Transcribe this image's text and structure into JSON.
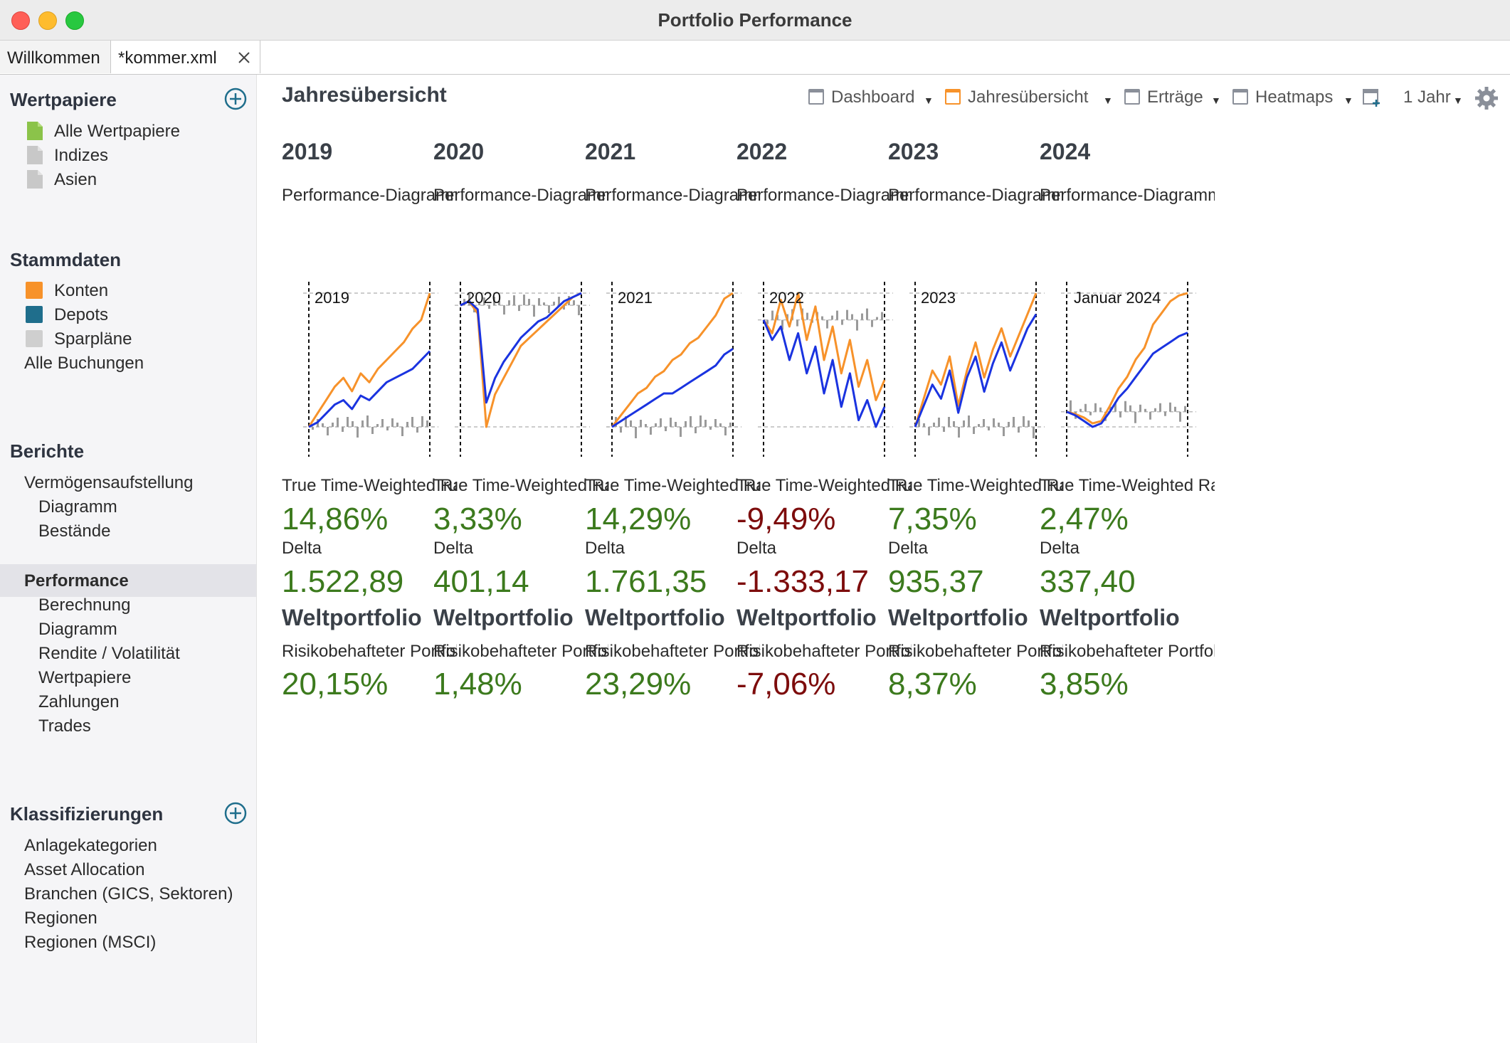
{
  "window": {
    "title": "Portfolio Performance"
  },
  "tabs": [
    {
      "label": "Willkommen"
    },
    {
      "label": "*kommer.xml"
    }
  ],
  "sidebar": {
    "wertpapiere": {
      "title": "Wertpapiere",
      "items": [
        {
          "label": "Alle Wertpapiere",
          "icon": "green-document-icon",
          "color": "#8bc34a"
        },
        {
          "label": "Indizes",
          "icon": "gray-document-icon",
          "color": "#c8c8c8"
        },
        {
          "label": "Asien",
          "icon": "gray-document-icon",
          "color": "#c8c8c8"
        }
      ]
    },
    "stammdaten": {
      "title": "Stammdaten",
      "items": [
        {
          "label": "Konten",
          "icon": "orange-account-icon",
          "color": "#f7922a"
        },
        {
          "label": "Depots",
          "icon": "blue-depot-icon",
          "color": "#1f6e8c"
        },
        {
          "label": "Sparpläne",
          "icon": "gray-savings-plan-icon",
          "color": "#cfcfcf"
        },
        {
          "label": "Alle Buchungen"
        }
      ]
    },
    "berichte": {
      "title": "Berichte",
      "items": [
        {
          "label": "Vermögensaufstellung",
          "level": 1
        },
        {
          "label": "Diagramm",
          "level": 2
        },
        {
          "label": "Bestände",
          "level": 2
        },
        {
          "label": "Performance",
          "level": 1,
          "selected": true
        },
        {
          "label": "Berechnung",
          "level": 2
        },
        {
          "label": "Diagramm",
          "level": 2
        },
        {
          "label": "Rendite / Volatilität",
          "level": 2
        },
        {
          "label": "Wertpapiere",
          "level": 2
        },
        {
          "label": "Zahlungen",
          "level": 2
        },
        {
          "label": "Trades",
          "level": 2
        }
      ]
    },
    "klassifizierungen": {
      "title": "Klassifizierungen",
      "items": [
        {
          "label": "Anlagekategorien"
        },
        {
          "label": "Asset Allocation"
        },
        {
          "label": "Branchen (GICS, Sektoren)"
        },
        {
          "label": "Regionen"
        },
        {
          "label": "Regionen (MSCI)"
        }
      ]
    }
  },
  "main": {
    "title": "Jahresübersicht",
    "toolbar": {
      "dashboard": "Dashboard",
      "jahresuebersicht": "Jahresübersicht",
      "ertraege": "Erträge",
      "heatmaps": "Heatmaps",
      "period": "1 Jahr"
    },
    "columns": [
      {
        "year": "2019",
        "chart_label": "Performance-Diagramm",
        "chart_caption": "2019",
        "ttwror_label": "True Time-Weighted Rate of Return",
        "ttwror": "14,86%",
        "ttwror_negative": false,
        "delta_label": "Delta",
        "delta": "1.522,89",
        "delta_negative": false,
        "portfolio": "Weltportfolio",
        "risk_label": "Risikobehafteter Portfolioteil",
        "risk": "20,15%",
        "risk_negative": false
      },
      {
        "year": "2020",
        "chart_label": "Performance-Diagramm",
        "chart_caption": "2020",
        "ttwror_label": "True Time-Weighted Rate of Return",
        "ttwror": "3,33%",
        "ttwror_negative": false,
        "delta_label": "Delta",
        "delta": "401,14",
        "delta_negative": false,
        "portfolio": "Weltportfolio",
        "risk_label": "Risikobehafteter Portfolioteil",
        "risk": "1,48%",
        "risk_negative": false
      },
      {
        "year": "2021",
        "chart_label": "Performance-Diagramm",
        "chart_caption": "2021",
        "ttwror_label": "True Time-Weighted Rate of Return",
        "ttwror": "14,29%",
        "ttwror_negative": false,
        "delta_label": "Delta",
        "delta": "1.761,35",
        "delta_negative": false,
        "portfolio": "Weltportfolio",
        "risk_label": "Risikobehafteter Portfolioteil",
        "risk": "23,29%",
        "risk_negative": false
      },
      {
        "year": "2022",
        "chart_label": "Performance-Diagramm",
        "chart_caption": "2022",
        "ttwror_label": "True Time-Weighted Rate of Return",
        "ttwror": "-9,49%",
        "ttwror_negative": true,
        "delta_label": "Delta",
        "delta": "-1.333,17",
        "delta_negative": true,
        "portfolio": "Weltportfolio",
        "risk_label": "Risikobehafteter Portfolioteil",
        "risk": "-7,06%",
        "risk_negative": true
      },
      {
        "year": "2023",
        "chart_label": "Performance-Diagramm",
        "chart_caption": "2023",
        "ttwror_label": "True Time-Weighted Rate of Return",
        "ttwror": "7,35%",
        "ttwror_negative": false,
        "delta_label": "Delta",
        "delta": "935,37",
        "delta_negative": false,
        "portfolio": "Weltportfolio",
        "risk_label": "Risikobehafteter Portfolioteil",
        "risk": "8,37%",
        "risk_negative": false
      },
      {
        "year": "2024",
        "chart_label": "Performance-Diagramm",
        "chart_caption": "Januar 2024",
        "ttwror_label": "True Time-Weighted Rate of Return",
        "ttwror": "2,47%",
        "ttwror_negative": false,
        "delta_label": "Delta",
        "delta": "337,40",
        "delta_negative": false,
        "portfolio": "Weltportfolio",
        "risk_label": "Risikobehafteter Portfolioteil",
        "risk": "3,85%",
        "risk_negative": false
      }
    ]
  },
  "colors": {
    "positive": "#3c7a1d",
    "negative": "#7d0c0c",
    "series_orange": "#f7922a",
    "series_blue": "#1a33e0",
    "series_gray": "#9a9a9a",
    "accent_plus": "#1f6e8c"
  },
  "chart_data": [
    {
      "type": "line",
      "chart": "2019",
      "series": [
        {
          "values": [
            0,
            3,
            6,
            9,
            11,
            8,
            12,
            10,
            13,
            15,
            17,
            19,
            22,
            24,
            30
          ]
        },
        {
          "values": [
            0,
            1,
            3,
            5,
            6,
            4,
            7,
            6,
            8,
            10,
            11,
            12,
            13,
            15,
            17
          ]
        }
      ]
    },
    {
      "type": "line",
      "chart": "2020",
      "series": [
        {
          "values": [
            0,
            1,
            -2,
            -30,
            -22,
            -18,
            -14,
            -10,
            -8,
            -6,
            -4,
            -2,
            0,
            2,
            3
          ]
        },
        {
          "values": [
            0,
            1,
            -1,
            -24,
            -18,
            -14,
            -11,
            -8,
            -6,
            -4,
            -3,
            -1,
            1,
            2,
            3
          ]
        }
      ]
    },
    {
      "type": "line",
      "chart": "2021",
      "series": [
        {
          "values": [
            0,
            2,
            4,
            6,
            7,
            9,
            10,
            12,
            13,
            15,
            16,
            18,
            20,
            23,
            24
          ]
        },
        {
          "values": [
            0,
            1,
            2,
            3,
            4,
            5,
            6,
            6,
            7,
            8,
            9,
            10,
            11,
            13,
            14
          ]
        }
      ]
    },
    {
      "type": "line",
      "chart": "2022",
      "series": [
        {
          "values": [
            0,
            -2,
            3,
            -1,
            4,
            -3,
            2,
            -6,
            -1,
            -8,
            -3,
            -10,
            -6,
            -12,
            -9
          ]
        },
        {
          "values": [
            0,
            -3,
            -1,
            -6,
            -2,
            -8,
            -4,
            -11,
            -6,
            -13,
            -8,
            -15,
            -12,
            -16,
            -13
          ]
        }
      ]
    },
    {
      "type": "line",
      "chart": "2023",
      "series": [
        {
          "values": [
            0,
            4,
            8,
            6,
            10,
            3,
            8,
            12,
            7,
            11,
            14,
            10,
            13,
            16,
            19
          ]
        },
        {
          "values": [
            0,
            3,
            6,
            4,
            8,
            2,
            7,
            10,
            5,
            9,
            12,
            8,
            11,
            14,
            16
          ]
        }
      ]
    },
    {
      "type": "line",
      "chart": "2024",
      "series": [
        {
          "values": [
            0,
            -0.2,
            -0.5,
            -1.0,
            -0.8,
            0.5,
            2.0,
            3.0,
            4.5,
            5.5,
            7.5,
            8.5,
            9.5,
            10.0,
            10.2
          ]
        },
        {
          "values": [
            0,
            -0.3,
            -0.8,
            -1.3,
            -1.0,
            0.0,
            1.2,
            2.0,
            3.0,
            4.0,
            5.0,
            5.5,
            6.0,
            6.5,
            6.8
          ]
        }
      ]
    }
  ]
}
